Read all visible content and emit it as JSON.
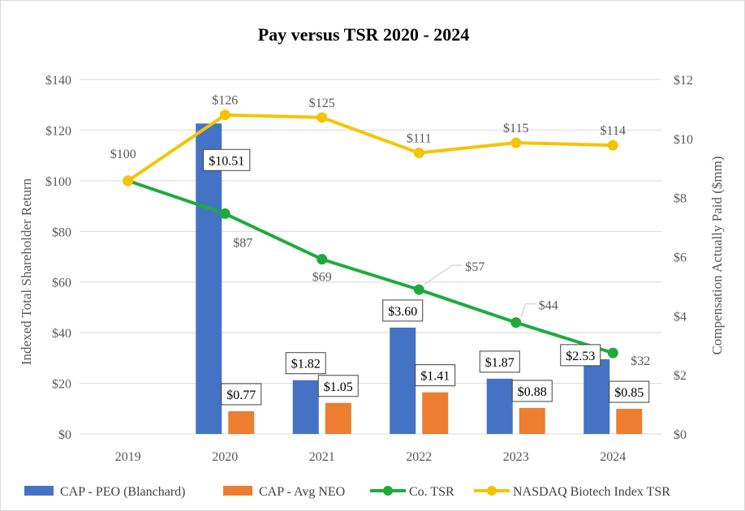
{
  "chart_data": {
    "type": "bar",
    "title": "Pay versus TSR 2020 - 2024",
    "categories": [
      "2019",
      "2020",
      "2021",
      "2022",
      "2023",
      "2024"
    ],
    "ylabel_left": "Indexed Total Shareholder Return",
    "ylabel_right": "Compensation Actually Paid ($mm)",
    "ylim_left": [
      0,
      140
    ],
    "ylim_right": [
      0,
      12
    ],
    "left_ticks": [
      "$0",
      "$20",
      "$40",
      "$60",
      "$80",
      "$100",
      "$120",
      "$140"
    ],
    "right_ticks": [
      "$0",
      "$2",
      "$4",
      "$6",
      "$8",
      "$10",
      "$12"
    ],
    "grid": true,
    "legend_position": "bottom",
    "series": [
      {
        "name": "CAP - PEO (Blanchard)",
        "kind": "bar",
        "axis": "right",
        "color": "#4472c4",
        "values": [
          0,
          10.51,
          1.82,
          3.6,
          1.87,
          2.53
        ],
        "labels": [
          "",
          "$10.51",
          "$1.82",
          "$3.60",
          "$1.87",
          "$2.53"
        ]
      },
      {
        "name": "CAP - Avg NEO",
        "kind": "bar",
        "axis": "right",
        "color": "#ed7d31",
        "values": [
          null,
          0.77,
          1.05,
          1.41,
          0.88,
          0.85
        ],
        "labels": [
          "",
          "$0.77",
          "$1.05",
          "$1.41",
          "$0.88",
          "$0.85"
        ]
      },
      {
        "name": "Co. TSR",
        "kind": "line",
        "axis": "left",
        "color": "#1faa3c",
        "values": [
          100,
          87,
          69,
          57,
          44,
          32
        ],
        "labels": [
          "$100",
          "$87",
          "$69",
          "$57",
          "$44",
          "$32"
        ]
      },
      {
        "name": "NASDAQ Biotech Index TSR",
        "kind": "line",
        "axis": "left",
        "color": "#f5c400",
        "values": [
          100,
          126,
          125,
          111,
          115,
          114
        ],
        "labels": [
          "",
          "$126",
          "$125",
          "$111",
          "$115",
          "$114"
        ]
      }
    ]
  }
}
